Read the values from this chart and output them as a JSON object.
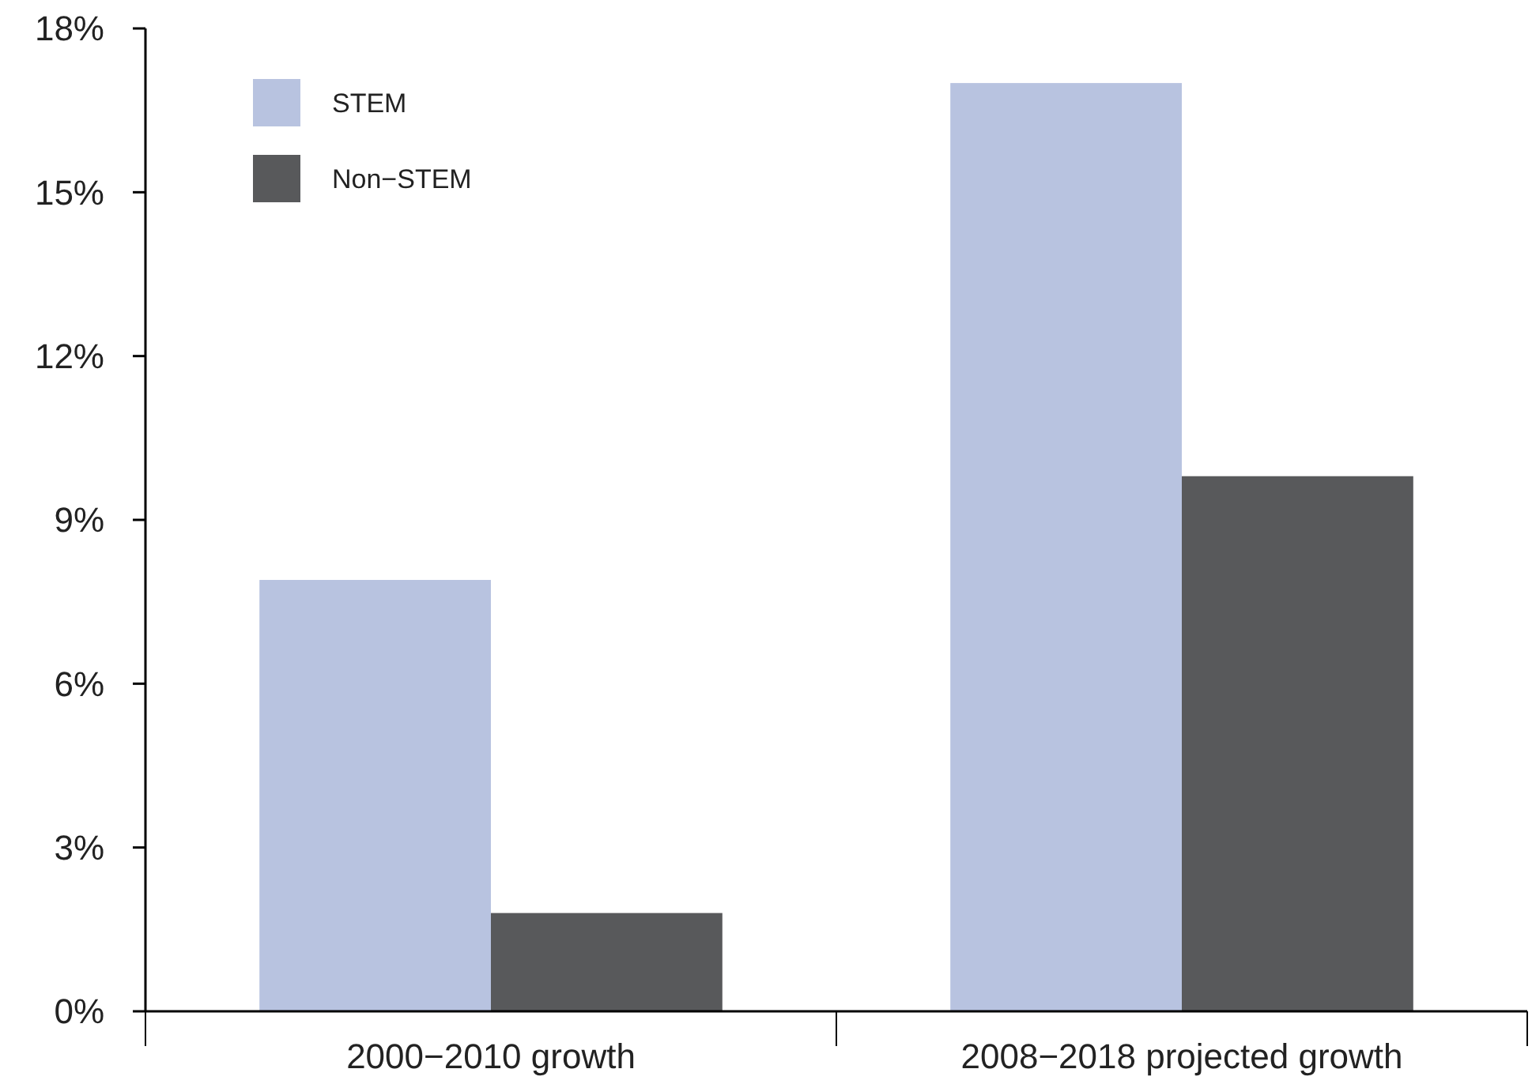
{
  "chart_data": {
    "type": "bar",
    "categories": [
      "2000−2010 growth",
      "2008−2018 projected growth"
    ],
    "series": [
      {
        "name": "STEM",
        "color": "#b8c3e0",
        "values": [
          7.9,
          17.0
        ]
      },
      {
        "name": "Non−STEM",
        "color": "#58595b",
        "values": [
          1.8,
          9.8
        ]
      }
    ],
    "ylim": [
      0,
      18
    ],
    "yticks": [
      {
        "value": 0,
        "label": "0%"
      },
      {
        "value": 3,
        "label": "3%"
      },
      {
        "value": 6,
        "label": "6%"
      },
      {
        "value": 9,
        "label": "9%"
      },
      {
        "value": 12,
        "label": "12%"
      },
      {
        "value": 15,
        "label": "15%"
      },
      {
        "value": 18,
        "label": "18%"
      }
    ],
    "grid": false,
    "legend": "top left"
  }
}
